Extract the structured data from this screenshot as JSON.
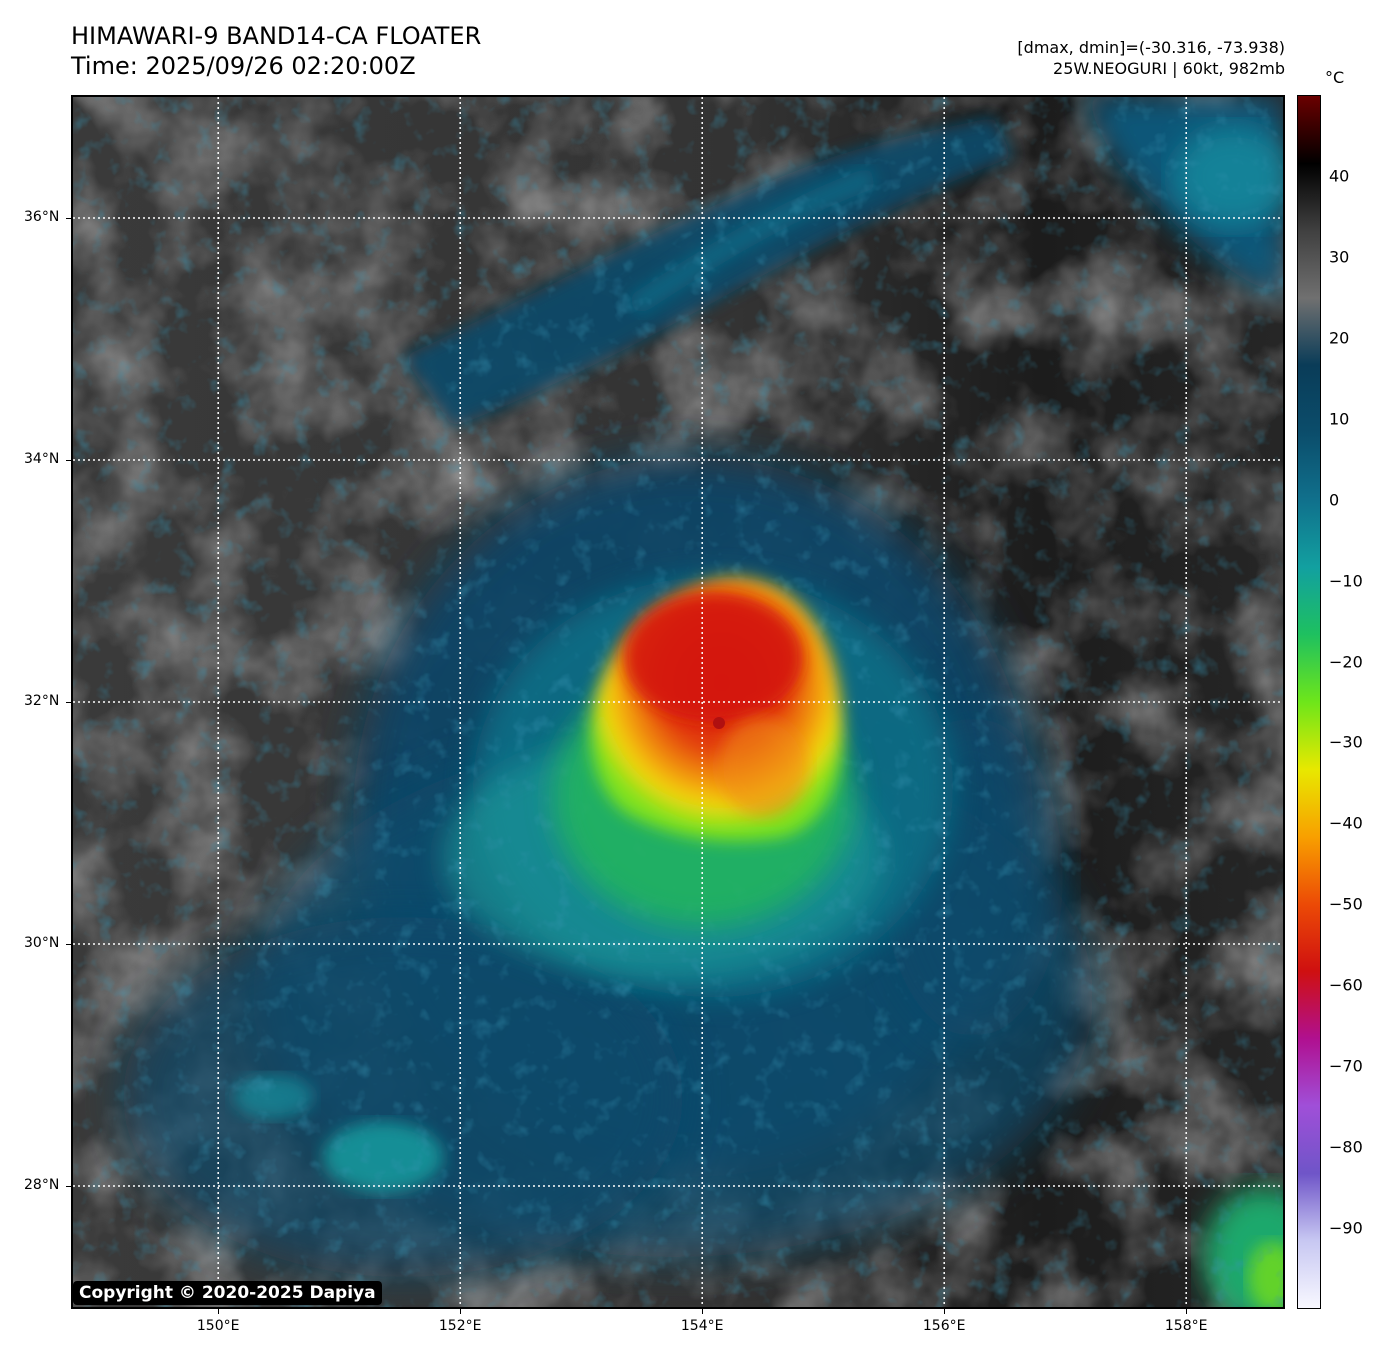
{
  "header": {
    "title_line1": "HIMAWARI-9 BAND14-CA FLOATER",
    "title_line2": "Time: 2025/09/26 02:20:00Z",
    "info_line1": "[dmax, dmin]=(-30.316, -73.938)",
    "info_line2": "25W.NEOGURI | 60kt, 982mb"
  },
  "map": {
    "lat_labels": [
      "36°N",
      "34°N",
      "32°N",
      "30°N",
      "28°N"
    ],
    "lon_labels": [
      "150°E",
      "152°E",
      "154°E",
      "156°E",
      "158°E"
    ],
    "lon_range": [
      148.8,
      158.8
    ],
    "lat_range": [
      27.0,
      37.0
    ],
    "grid_lats": [
      36,
      34,
      32,
      30,
      28
    ],
    "grid_lons": [
      150,
      152,
      154,
      156,
      158
    ],
    "storm_center": [
      153.95,
      31.8
    ]
  },
  "colorbar": {
    "unit": "°C",
    "labels": [
      "40",
      "30",
      "20",
      "10",
      "0",
      "−10",
      "−20",
      "−30",
      "−40",
      "−50",
      "−60",
      "−70",
      "−80",
      "−90"
    ],
    "range": [
      -100,
      50
    ],
    "colors": [
      "#f8f8ff",
      "#c7c7f2",
      "#6f55c8",
      "#a04fd8",
      "#b01090",
      "#cf1010",
      "#ec4a06",
      "#f8a000",
      "#e8e800",
      "#6ee61a",
      "#1ec060",
      "#12a0a0",
      "#10708c",
      "#0b4d6b",
      "#0a3c58",
      "#707070",
      "#404040",
      "#000000",
      "#6a0000"
    ]
  },
  "copyright": "Copyright © 2020-2025 Dapiya"
}
